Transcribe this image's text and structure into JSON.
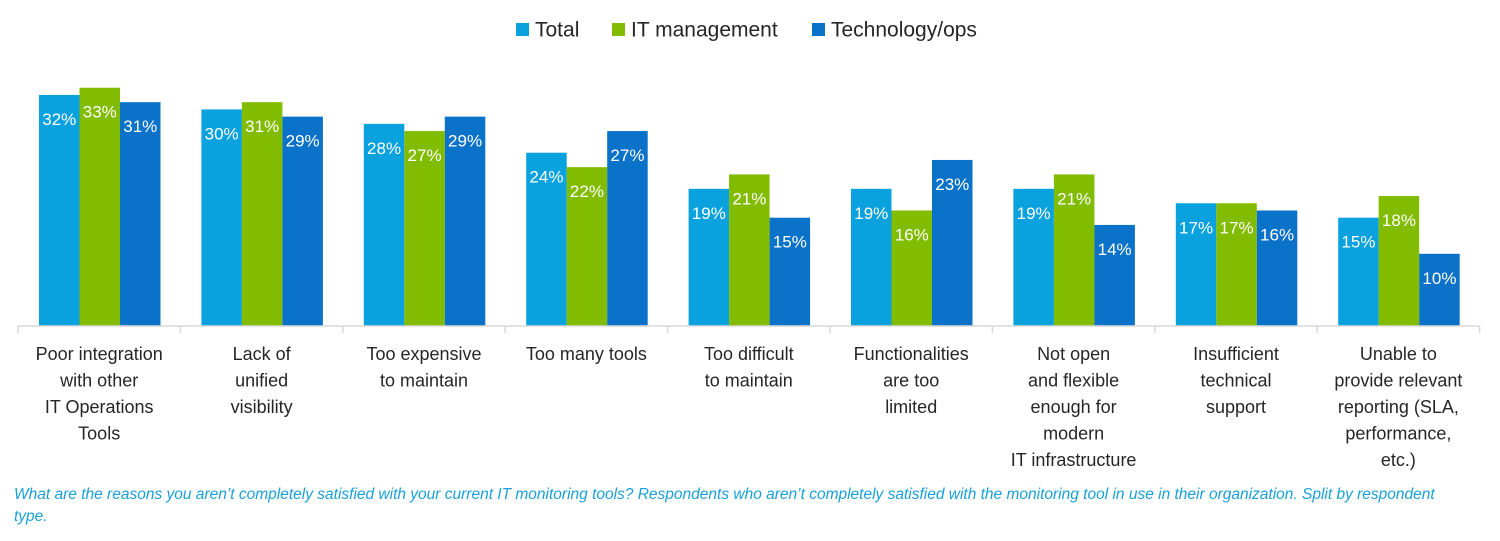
{
  "chart_data": {
    "type": "bar",
    "categories": [
      [
        "Poor integration",
        "with other",
        "IT Operations",
        "Tools"
      ],
      [
        "Lack of",
        "unified",
        "visibility"
      ],
      [
        "Too expensive",
        "to maintain"
      ],
      [
        "Too many tools"
      ],
      [
        "Too difficult",
        "to maintain"
      ],
      [
        "Functionalities",
        "are too",
        "limited"
      ],
      [
        "Not open",
        "and flexible",
        "enough for",
        "modern",
        "IT infrastructure"
      ],
      [
        "Insufficient",
        "technical",
        "support"
      ],
      [
        "Unable to",
        "provide relevant",
        "reporting (SLA,",
        "performance,",
        "etc.)"
      ]
    ],
    "series": [
      {
        "name": "Total",
        "color": "#0aa1df",
        "values": [
          32,
          30,
          28,
          24,
          19,
          19,
          19,
          17,
          15
        ]
      },
      {
        "name": "IT management",
        "color": "#82bc00",
        "values": [
          33,
          31,
          27,
          22,
          21,
          16,
          21,
          17,
          18
        ]
      },
      {
        "name": "Technology/ops",
        "color": "#0a72c9",
        "values": [
          31,
          29,
          29,
          27,
          15,
          23,
          14,
          16,
          10
        ]
      }
    ],
    "value_suffix": "%",
    "legend_position": "top-center",
    "grid": false,
    "ylim": [
      0,
      36
    ]
  },
  "footnote": "What are the reasons you aren’t completely satisfied with your current IT monitoring tools? Respondents who aren’t completely satisfied with the monitoring tool in use in their organization. Split by respondent type."
}
